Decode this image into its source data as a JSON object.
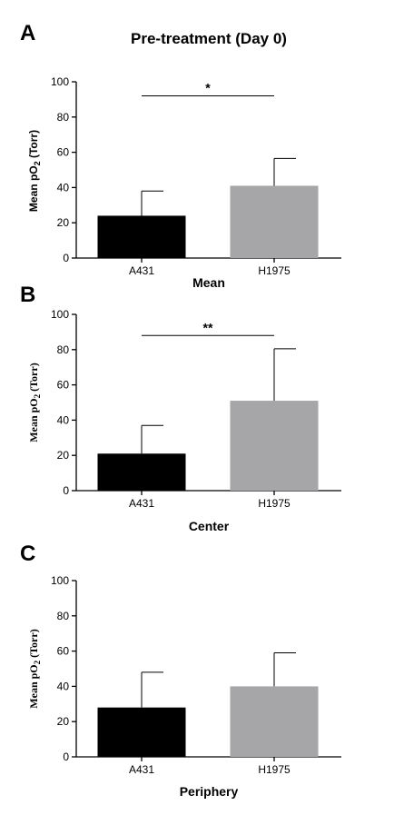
{
  "figure": {
    "title": "Pre-treatment (Day 0)"
  },
  "chart_data": [
    {
      "type": "bar",
      "panel": "A",
      "categories": [
        "A431",
        "H1975"
      ],
      "values": [
        24,
        41
      ],
      "errors": [
        14,
        15.5
      ],
      "colors": [
        "#000000",
        "#a6a6a8"
      ],
      "xlabel": "Mean",
      "ylabel_main": "Mean pO",
      "ylabel_sub": "2",
      "ylabel_tail": " (Torr)",
      "ylim": [
        0,
        100
      ],
      "yticks": [
        "0",
        "20",
        "40",
        "60",
        "80",
        "100"
      ],
      "significance": {
        "label": "*",
        "from": 0,
        "to": 1,
        "y": 92
      }
    },
    {
      "type": "bar",
      "panel": "B",
      "categories": [
        "A431",
        "H1975"
      ],
      "values": [
        21,
        51
      ],
      "errors": [
        16,
        29.5
      ],
      "colors": [
        "#000000",
        "#a6a6a8"
      ],
      "xlabel": "Center",
      "ylabel_main": "Mean pO",
      "ylabel_sub": "2",
      "ylabel_tail": " (Torr)",
      "ylim": [
        0,
        100
      ],
      "yticks": [
        "0",
        "20",
        "40",
        "60",
        "80",
        "100"
      ],
      "significance": {
        "label": "**",
        "from": 0,
        "to": 1,
        "y": 88
      }
    },
    {
      "type": "bar",
      "panel": "C",
      "categories": [
        "A431",
        "H1975"
      ],
      "values": [
        28,
        40
      ],
      "errors": [
        20,
        19
      ],
      "colors": [
        "#000000",
        "#a6a6a8"
      ],
      "xlabel": "Periphery",
      "ylabel_main": "Mean pO",
      "ylabel_sub": "2",
      "ylabel_tail": " (Torr)",
      "ylim": [
        0,
        100
      ],
      "yticks": [
        "0",
        "20",
        "40",
        "60",
        "80",
        "100"
      ],
      "significance": null
    }
  ]
}
